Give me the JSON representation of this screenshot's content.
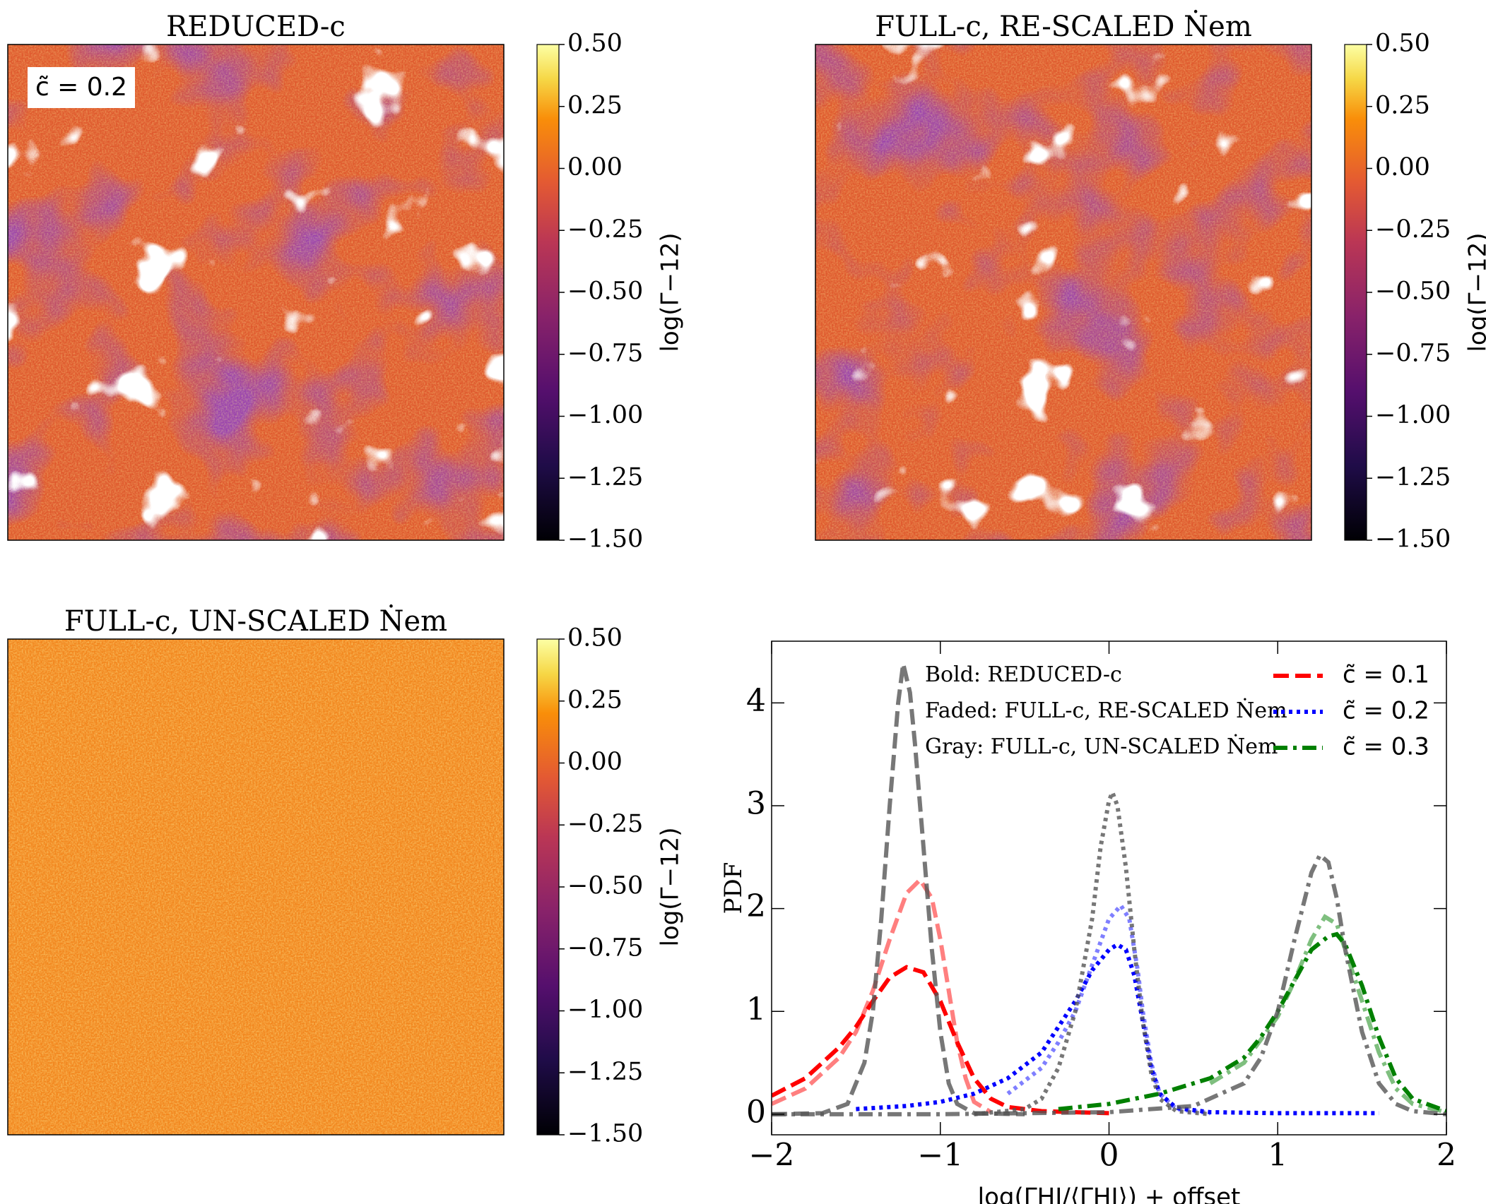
{
  "chart_data": [
    {
      "type": "heatmap",
      "title": "REDUCED-c",
      "annotation": "c̃ = 0.2",
      "colorbar_label": "log(Γ−12)",
      "clim": [
        -1.5,
        0.5
      ],
      "cticks": [
        {
          "value": 0.5,
          "label": "0.50"
        },
        {
          "value": 0.25,
          "label": "0.25"
        },
        {
          "value": 0,
          "label": "0.00"
        },
        {
          "value": -0.25,
          "label": "−0.25"
        },
        {
          "value": -0.5,
          "label": "−0.50"
        },
        {
          "value": -0.75,
          "label": "−0.75"
        },
        {
          "value": -1,
          "label": "−1.00"
        },
        {
          "value": -1.25,
          "label": "−1.25"
        },
        {
          "value": -1.5,
          "label": "−1.50"
        }
      ]
    },
    {
      "type": "heatmap",
      "title": "FULL-c, RE-SCALED Ṅem",
      "colorbar_label": "log(Γ−12)",
      "clim": [
        -1.5,
        0.5
      ],
      "cticks": [
        {
          "value": 0.5,
          "label": "0.50"
        },
        {
          "value": 0.25,
          "label": "0.25"
        },
        {
          "value": 0,
          "label": "0.00"
        },
        {
          "value": -0.25,
          "label": "−0.25"
        },
        {
          "value": -0.5,
          "label": "−0.50"
        },
        {
          "value": -0.75,
          "label": "−0.75"
        },
        {
          "value": -1,
          "label": "−1.00"
        },
        {
          "value": -1.25,
          "label": "−1.25"
        },
        {
          "value": -1.5,
          "label": "−1.50"
        }
      ]
    },
    {
      "type": "heatmap",
      "title": "FULL-c, UN-SCALED Ṅem",
      "colorbar_label": "log(Γ−12)",
      "clim": [
        -1.5,
        0.5
      ],
      "cticks": [
        {
          "value": 0.5,
          "label": "0.50"
        },
        {
          "value": 0.25,
          "label": "0.25"
        },
        {
          "value": 0,
          "label": "0.00"
        },
        {
          "value": -0.25,
          "label": "−0.25"
        },
        {
          "value": -0.5,
          "label": "−0.50"
        },
        {
          "value": -0.75,
          "label": "−0.75"
        },
        {
          "value": -1,
          "label": "−1.00"
        },
        {
          "value": -1.25,
          "label": "−1.25"
        },
        {
          "value": -1.5,
          "label": "−1.50"
        }
      ]
    },
    {
      "type": "line",
      "x_label": "log(ΓHI/⟨ΓHI⟩) + offset",
      "y_label": "PDF",
      "annotations": [
        "Bold: REDUCED-c",
        "Faded: FULL-c, RE-SCALED Ṅem",
        "Gray: FULL-c, UN-SCALED Ṅem"
      ],
      "xlim": [
        -2,
        2
      ],
      "ylim": [
        -0.2,
        4.6
      ],
      "xticks": [
        {
          "value": -2,
          "label": "−2"
        },
        {
          "value": -1,
          "label": "−1"
        },
        0,
        1,
        2
      ],
      "yticks": [
        0,
        1,
        2,
        3,
        4
      ],
      "series": [
        {
          "name": "c̃ = 0.1",
          "color": "#ff0000",
          "dash": "dashed",
          "alpha": 1,
          "x": [
            -2,
            -1.8,
            -1.6,
            -1.5,
            -1.4,
            -1.3,
            -1.2,
            -1.1,
            -1.0,
            -0.9,
            -0.8,
            -0.7,
            -0.6,
            -0.4,
            -0.2,
            0
          ],
          "values": [
            0.18,
            0.35,
            0.65,
            0.85,
            1.1,
            1.33,
            1.43,
            1.38,
            1.1,
            0.7,
            0.35,
            0.15,
            0.07,
            0.03,
            0.02,
            0.01
          ]
        },
        {
          "color": "#ff0000",
          "dash": "dashed",
          "alpha": 0.5,
          "x": [
            -2,
            -1.8,
            -1.6,
            -1.5,
            -1.4,
            -1.3,
            -1.2,
            -1.12,
            -1.05,
            -1.0,
            -0.95,
            -0.9,
            -0.85,
            -0.8,
            -0.7
          ],
          "values": [
            0.1,
            0.25,
            0.55,
            0.8,
            1.2,
            1.7,
            2.15,
            2.28,
            2.1,
            1.7,
            1.2,
            0.7,
            0.35,
            0.12,
            0.02
          ]
        },
        {
          "color": "#555555",
          "dash": "dashed",
          "alpha": 0.8,
          "x": [
            -2,
            -1.7,
            -1.55,
            -1.45,
            -1.4,
            -1.35,
            -1.3,
            -1.25,
            -1.22,
            -1.18,
            -1.15,
            -1.1,
            -1.05,
            -1.0,
            -0.95,
            -0.9,
            -0.8,
            -0.5
          ],
          "values": [
            0,
            0.01,
            0.1,
            0.5,
            1.0,
            1.9,
            3.0,
            4.0,
            4.38,
            4.1,
            3.6,
            2.6,
            1.6,
            0.8,
            0.3,
            0.1,
            0.01,
            0
          ]
        },
        {
          "name": "c̃ = 0.2",
          "color": "#0000ff",
          "dash": "dotted",
          "alpha": 1,
          "x": [
            -1.5,
            -1.2,
            -1.0,
            -0.8,
            -0.6,
            -0.4,
            -0.3,
            -0.2,
            -0.1,
            0,
            0.05,
            0.1,
            0.15,
            0.2,
            0.25,
            0.3,
            0.4,
            0.6,
            1.0,
            1.6
          ],
          "values": [
            0.05,
            0.08,
            0.12,
            0.2,
            0.35,
            0.6,
            0.85,
            1.1,
            1.4,
            1.6,
            1.65,
            1.6,
            1.35,
            0.9,
            0.45,
            0.2,
            0.06,
            0.02,
            0.01,
            0.01
          ]
        },
        {
          "color": "#0000ff",
          "dash": "dotted",
          "alpha": 0.5,
          "x": [
            -0.6,
            -0.4,
            -0.3,
            -0.2,
            -0.1,
            0,
            0.07,
            0.12,
            0.17,
            0.2,
            0.25,
            0.3,
            0.4,
            0.6
          ],
          "values": [
            0.2,
            0.45,
            0.7,
            1.0,
            1.45,
            1.9,
            2.03,
            1.9,
            1.4,
            1.0,
            0.5,
            0.2,
            0.05,
            0.01
          ]
        },
        {
          "color": "#555555",
          "dash": "dotted",
          "alpha": 0.8,
          "x": [
            -0.8,
            -0.5,
            -0.4,
            -0.3,
            -0.2,
            -0.1,
            -0.05,
            0,
            0.02,
            0.05,
            0.1,
            0.15,
            0.2,
            0.25,
            0.3,
            0.4,
            0.6
          ],
          "values": [
            0,
            0.05,
            0.15,
            0.45,
            1.0,
            1.9,
            2.6,
            3.05,
            3.13,
            3.0,
            2.4,
            1.6,
            0.9,
            0.4,
            0.15,
            0.03,
            0
          ]
        },
        {
          "name": "c̃ = 0.3",
          "color": "#008000",
          "dash": "dashdot",
          "alpha": 1,
          "x": [
            -0.3,
            0,
            0.3,
            0.6,
            0.8,
            0.9,
            1.0,
            1.1,
            1.2,
            1.3,
            1.35,
            1.4,
            1.5,
            1.6,
            1.7,
            1.8,
            2.0
          ],
          "values": [
            0.05,
            0.1,
            0.2,
            0.35,
            0.55,
            0.75,
            1.0,
            1.3,
            1.6,
            1.73,
            1.75,
            1.65,
            1.25,
            0.75,
            0.35,
            0.15,
            0.03
          ]
        },
        {
          "color": "#008000",
          "dash": "dashdot",
          "alpha": 0.5,
          "x": [
            0.6,
            0.8,
            1.0,
            1.1,
            1.2,
            1.28,
            1.35,
            1.4,
            1.5,
            1.6,
            1.7,
            1.8,
            2.0
          ],
          "values": [
            0.3,
            0.5,
            0.95,
            1.3,
            1.7,
            1.92,
            1.85,
            1.6,
            1.1,
            0.6,
            0.25,
            0.1,
            0.02
          ]
        },
        {
          "color": "#555555",
          "dash": "dashdot",
          "alpha": 0.8,
          "x": [
            -2,
            -1.5,
            -1.0,
            -0.5,
            0,
            0.5,
            0.8,
            0.9,
            1.0,
            1.1,
            1.2,
            1.25,
            1.3,
            1.35,
            1.4,
            1.5,
            1.6,
            1.7,
            1.8,
            2.0
          ],
          "values": [
            0,
            0,
            0,
            0.01,
            0.02,
            0.08,
            0.3,
            0.55,
            1.0,
            1.7,
            2.35,
            2.52,
            2.45,
            2.1,
            1.6,
            0.8,
            0.3,
            0.1,
            0.03,
            0
          ]
        }
      ]
    }
  ]
}
